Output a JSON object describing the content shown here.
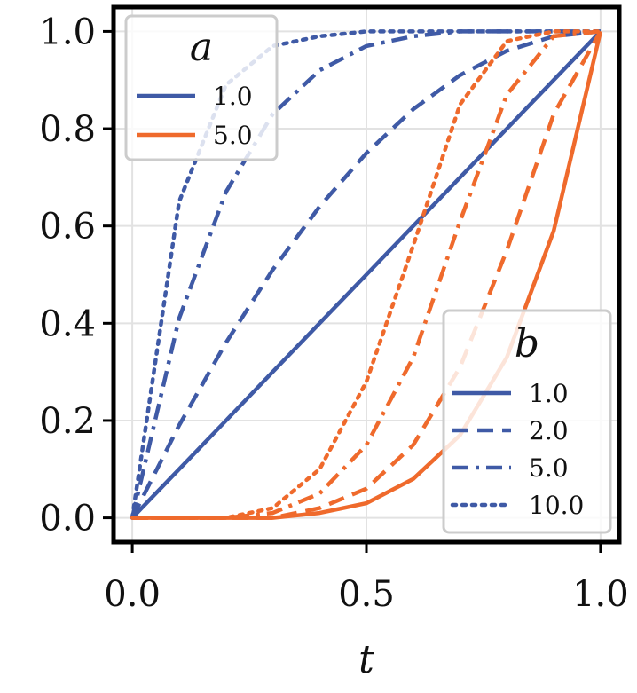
{
  "chart_data": {
    "type": "line",
    "xlabel": "t",
    "ylabel": "",
    "xlim": [
      -0.04,
      1.04
    ],
    "ylim": [
      -0.05,
      1.05
    ],
    "xticks": [
      0.0,
      0.5,
      1.0
    ],
    "xtick_labels": [
      "0.0",
      "0.5",
      "1.0"
    ],
    "yticks": [
      0.0,
      0.2,
      0.4,
      0.6,
      0.8,
      1.0
    ],
    "ytick_labels": [
      "0.0",
      "0.2",
      "0.4",
      "0.6",
      "0.8",
      "1.0"
    ],
    "grid": true,
    "colors": {
      "a=1.0": "#3f5aa6",
      "a=5.0": "#ef6a2c"
    },
    "linestyles": {
      "1.0": "solid",
      "2.0": "dashed",
      "5.0": "dashdot",
      "10.0": "dotted"
    },
    "x": [
      0.0,
      0.1,
      0.2,
      0.3,
      0.4,
      0.5,
      0.6,
      0.7,
      0.8,
      0.9,
      1.0
    ],
    "series": [
      {
        "a": "1.0",
        "b": "1.0",
        "values": [
          0.0,
          0.1,
          0.2,
          0.3,
          0.4,
          0.5,
          0.6,
          0.7,
          0.8,
          0.9,
          1.0
        ]
      },
      {
        "a": "1.0",
        "b": "2.0",
        "values": [
          0.0,
          0.19,
          0.36,
          0.51,
          0.64,
          0.75,
          0.84,
          0.91,
          0.96,
          0.99,
          1.0
        ]
      },
      {
        "a": "1.0",
        "b": "5.0",
        "values": [
          0.0,
          0.41,
          0.67,
          0.83,
          0.92,
          0.97,
          0.99,
          1.0,
          1.0,
          1.0,
          1.0
        ]
      },
      {
        "a": "1.0",
        "b": "10.0",
        "values": [
          0.0,
          0.65,
          0.89,
          0.97,
          0.99,
          1.0,
          1.0,
          1.0,
          1.0,
          1.0,
          1.0
        ]
      },
      {
        "a": "5.0",
        "b": "1.0",
        "values": [
          0.0,
          0.0,
          0.0,
          0.0,
          0.01,
          0.03,
          0.08,
          0.17,
          0.33,
          0.59,
          1.0
        ]
      },
      {
        "a": "5.0",
        "b": "2.0",
        "values": [
          0.0,
          0.0,
          0.0,
          0.0,
          0.02,
          0.06,
          0.15,
          0.31,
          0.55,
          0.83,
          1.0
        ]
      },
      {
        "a": "5.0",
        "b": "5.0",
        "values": [
          0.0,
          0.0,
          0.0,
          0.01,
          0.05,
          0.15,
          0.33,
          0.61,
          0.87,
          0.99,
          1.0
        ]
      },
      {
        "a": "5.0",
        "b": "10.0",
        "values": [
          0.0,
          0.0,
          0.0,
          0.02,
          0.1,
          0.28,
          0.56,
          0.85,
          0.98,
          1.0,
          1.0
        ]
      }
    ],
    "legend_a": {
      "title": "a",
      "location": "top-left",
      "entries": [
        {
          "label": "1.0",
          "color": "#3f5aa6",
          "style": "solid"
        },
        {
          "label": "5.0",
          "color": "#ef6a2c",
          "style": "solid"
        }
      ]
    },
    "legend_b": {
      "title": "b",
      "location": "bottom-right",
      "entries": [
        {
          "label": "1.0",
          "color": "#3f5aa6",
          "style": "solid"
        },
        {
          "label": "2.0",
          "color": "#3f5aa6",
          "style": "dashed"
        },
        {
          "label": "5.0",
          "color": "#3f5aa6",
          "style": "dashdot"
        },
        {
          "label": "10.0",
          "color": "#3f5aa6",
          "style": "dotted"
        }
      ]
    }
  }
}
